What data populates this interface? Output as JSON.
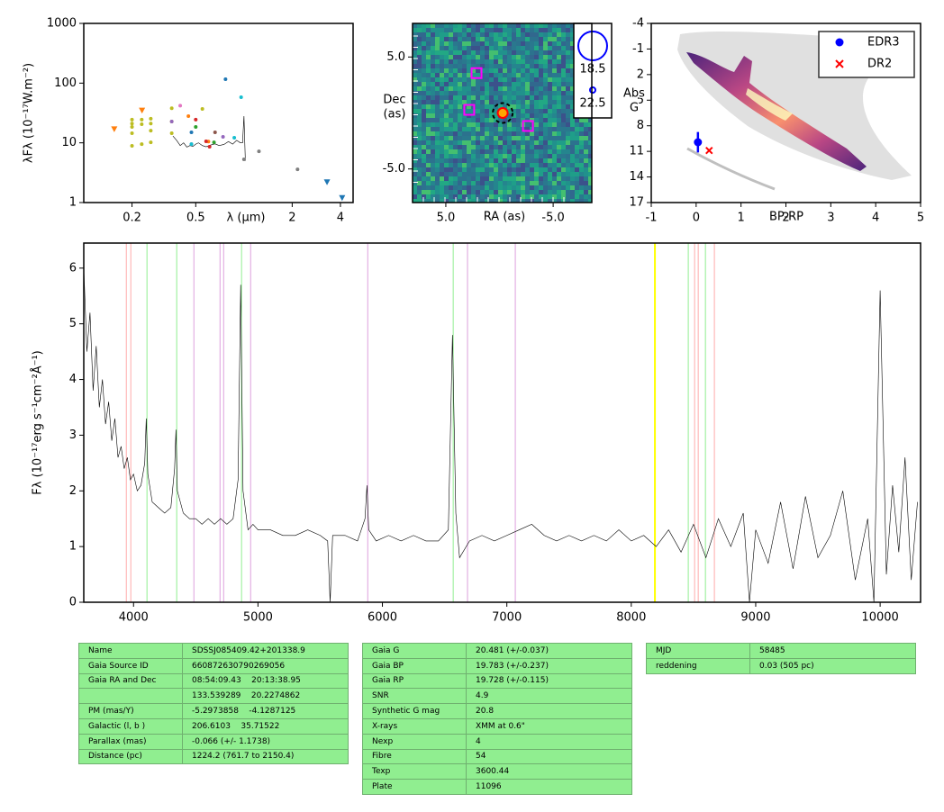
{
  "chart_data": [
    {
      "type": "scatter",
      "log_x": true,
      "log_y": true,
      "xlim": [
        0.1,
        4.8
      ],
      "ylim": [
        1,
        1000
      ],
      "xticks": [
        0.2,
        0.5,
        2,
        4
      ],
      "yticks": [
        1,
        10,
        100,
        1000
      ],
      "xlabel": "λ (μm)",
      "ylabel": "λFλ (10⁻¹⁷W.m⁻²)",
      "series": [
        {
          "color": "#000000",
          "marker": "line",
          "x": [
            0.36,
            0.38,
            0.4,
            0.42,
            0.44,
            0.46,
            0.48,
            0.5,
            0.52,
            0.55,
            0.58,
            0.62,
            0.66,
            0.7,
            0.75,
            0.8,
            0.85,
            0.9,
            0.95,
            0.98,
            1.0,
            1.02
          ],
          "values": [
            13,
            11,
            9,
            10,
            8.5,
            9,
            8.7,
            9.5,
            10,
            9,
            8.6,
            9.2,
            9.6,
            9,
            9.4,
            10.5,
            9.5,
            11,
            10,
            10,
            28,
            5
          ]
        },
        {
          "color": "#bcbd22",
          "marker": "dot",
          "x": [
            0.2,
            0.2,
            0.2,
            0.2,
            0.2,
            0.23,
            0.23,
            0.23,
            0.262,
            0.262,
            0.262,
            0.262,
            0.354,
            0.354,
            0.354,
            0.55
          ],
          "values": [
            24.5,
            21,
            18.5,
            14.5,
            8.9,
            24.5,
            20.5,
            9.5,
            25.3,
            21,
            16,
            10.2,
            38,
            22.7,
            14.5,
            37
          ]
        },
        {
          "color": "#ff7f0e",
          "marker": "triangle",
          "x": [
            0.155,
            0.231
          ],
          "values": [
            17,
            35
          ]
        },
        {
          "color": "#ff7f0e",
          "marker": "dot",
          "x": [
            0.45,
            0.6
          ],
          "values": [
            28,
            10.5
          ]
        },
        {
          "color": "#e377c2",
          "marker": "dot",
          "x": [
            0.4
          ],
          "values": [
            42
          ]
        },
        {
          "color": "#9467bd",
          "marker": "dot",
          "x": [
            0.354,
            0.47,
            0.74
          ],
          "values": [
            22.7,
            9.5,
            12.6
          ]
        },
        {
          "color": "#1f77b4",
          "marker": "dot",
          "x": [
            0.767,
            0.47
          ],
          "values": [
            116,
            15
          ]
        },
        {
          "color": "#17becf",
          "marker": "dot",
          "x": [
            0.96,
            0.87,
            0.47
          ],
          "values": [
            58,
            12.2,
            9.5
          ]
        },
        {
          "color": "#7f7f7f",
          "marker": "dot",
          "x": [
            1.24,
            2.16,
            1.0
          ],
          "values": [
            7.2,
            3.6,
            5.3
          ]
        },
        {
          "color": "#1f77b4",
          "marker": "triangle",
          "x": [
            3.3,
            4.1
          ],
          "values": [
            2.2,
            1.2
          ]
        },
        {
          "color": "#d62728",
          "marker": "dot",
          "x": [
            0.5,
            0.58,
            0.61
          ],
          "values": [
            24.5,
            10.6,
            8.6
          ]
        },
        {
          "color": "#2ca02c",
          "marker": "dot",
          "x": [
            0.5,
            0.65
          ],
          "values": [
            18.5,
            10.2
          ]
        },
        {
          "color": "#8c564b",
          "marker": "dot",
          "x": [
            0.66
          ],
          "values": [
            15
          ]
        }
      ]
    },
    {
      "type": "image",
      "xlim": [
        8.1,
        -8.6
      ],
      "ylim": [
        -8,
        8
      ],
      "xticks": [
        {
          "value": 5,
          "label": "5.0"
        },
        {
          "value": -5,
          "label": "-5.0"
        }
      ],
      "yticks": [
        {
          "value": 5,
          "label": "5.0"
        },
        {
          "value": -5,
          "label": "-5.0"
        }
      ],
      "xlabel": "RA (as)",
      "ylabel": [
        "Dec",
        "(as)"
      ],
      "target": {
        "x": -0.3,
        "y": 0,
        "color": "#ff0000"
      },
      "neighbours": {
        "color": "#ff00ff",
        "x": [
          2.14,
          2.82,
          -2.65
        ],
        "values": [
          3.56,
          0.28,
          -1.16
        ]
      },
      "size_legend": [
        18.5,
        22.5
      ],
      "size_legend_color": "#0000ff"
    },
    {
      "type": "scatter",
      "xlim": [
        -1,
        5
      ],
      "ylim": [
        17,
        -4
      ],
      "xticks": [
        -1,
        0,
        1,
        2,
        3,
        4,
        5
      ],
      "yticks": [
        -4,
        -1,
        2,
        5,
        8,
        11,
        14,
        17
      ],
      "xlabel": "BP-RP",
      "ylabel": [
        "Abs",
        "G"
      ],
      "legend": "upper right",
      "series": [
        {
          "name": "EDR3",
          "color": "#0000ff",
          "marker": "dot",
          "x": [
            0.04
          ],
          "values": [
            9.93
          ],
          "errors": [
            1.2
          ]
        },
        {
          "name": "DR2",
          "color": "#ff0000",
          "marker": "x",
          "x": [
            0.29
          ],
          "values": [
            10.9
          ]
        }
      ]
    },
    {
      "type": "line",
      "xlim": [
        3600,
        10325
      ],
      "ylim": [
        0,
        6.45
      ],
      "xticks": [
        4000,
        5000,
        6000,
        7000,
        8000,
        9000,
        10000
      ],
      "yticks": [
        0,
        1,
        2,
        3,
        4,
        5,
        6
      ],
      "ylabel": "Fλ (10⁻¹⁷erg s⁻¹cm⁻²Å⁻¹)",
      "color": "#000000",
      "x": [
        3600,
        3625,
        3650,
        3675,
        3700,
        3725,
        3750,
        3775,
        3800,
        3825,
        3850,
        3875,
        3900,
        3925,
        3950,
        3975,
        4000,
        4030,
        4060,
        4090,
        4102,
        4115,
        4150,
        4200,
        4250,
        4300,
        4330,
        4341,
        4352,
        4400,
        4450,
        4500,
        4550,
        4600,
        4650,
        4700,
        4750,
        4800,
        4840,
        4861,
        4880,
        4920,
        4960,
        5000,
        5100,
        5200,
        5300,
        5400,
        5500,
        5560,
        5580,
        5600,
        5700,
        5800,
        5860,
        5876,
        5890,
        5950,
        6050,
        6150,
        6250,
        6350,
        6450,
        6530,
        6563,
        6590,
        6620,
        6700,
        6800,
        6900,
        7000,
        7100,
        7200,
        7300,
        7400,
        7500,
        7600,
        7700,
        7800,
        7900,
        8000,
        8100,
        8200,
        8300,
        8400,
        8500,
        8600,
        8700,
        8800,
        8900,
        8950,
        9000,
        9100,
        9200,
        9300,
        9400,
        9500,
        9600,
        9700,
        9800,
        9900,
        9950,
        10000,
        10050,
        10100,
        10150,
        10200,
        10250,
        10300
      ],
      "values": [
        6.0,
        4.5,
        5.2,
        3.8,
        4.6,
        3.5,
        4.0,
        3.2,
        3.6,
        2.9,
        3.3,
        2.6,
        2.8,
        2.4,
        2.6,
        2.2,
        2.3,
        2.0,
        2.1,
        2.5,
        3.3,
        2.3,
        1.8,
        1.7,
        1.6,
        1.7,
        2.4,
        3.1,
        2.0,
        1.6,
        1.5,
        1.5,
        1.4,
        1.5,
        1.4,
        1.5,
        1.4,
        1.5,
        2.2,
        5.7,
        2.0,
        1.3,
        1.4,
        1.3,
        1.3,
        1.2,
        1.2,
        1.3,
        1.2,
        1.1,
        0.0,
        1.2,
        1.2,
        1.1,
        1.5,
        2.1,
        1.3,
        1.1,
        1.2,
        1.1,
        1.2,
        1.1,
        1.1,
        1.3,
        4.8,
        1.6,
        0.8,
        1.1,
        1.2,
        1.1,
        1.2,
        1.3,
        1.4,
        1.2,
        1.1,
        1.2,
        1.1,
        1.2,
        1.1,
        1.3,
        1.1,
        1.2,
        1.0,
        1.3,
        0.9,
        1.4,
        0.8,
        1.5,
        1.0,
        1.6,
        0.0,
        1.3,
        0.7,
        1.8,
        0.6,
        1.9,
        0.8,
        1.2,
        2.0,
        0.4,
        1.5,
        0.0,
        5.6,
        0.5,
        2.1,
        0.9,
        2.6,
        0.4,
        1.8
      ],
      "lines": [
        {
          "x": 3942,
          "color": "#ffaaaa"
        },
        {
          "x": 3978,
          "color": "#ffaaaa"
        },
        {
          "x": 4108,
          "color": "#90ee90"
        },
        {
          "x": 4347,
          "color": "#90ee90"
        },
        {
          "x": 4485,
          "color": "#dda0dd"
        },
        {
          "x": 4695,
          "color": "#dda0dd"
        },
        {
          "x": 4724,
          "color": "#dda0dd"
        },
        {
          "x": 4868,
          "color": "#90ee90"
        },
        {
          "x": 4941,
          "color": "#dda0dd"
        },
        {
          "x": 5882,
          "color": "#dda0dd"
        },
        {
          "x": 6569,
          "color": "#90ee90"
        },
        {
          "x": 6684,
          "color": "#dda0dd"
        },
        {
          "x": 7068,
          "color": "#dda0dd"
        },
        {
          "x": 8190,
          "color": "#ffff00"
        },
        {
          "x": 8458,
          "color": "#90ee90"
        },
        {
          "x": 8509,
          "color": "#ffaaaa"
        },
        {
          "x": 8538,
          "color": "#ffaaaa"
        },
        {
          "x": 8596,
          "color": "#90ee90"
        },
        {
          "x": 8668,
          "color": "#ffaaaa"
        }
      ]
    }
  ],
  "tables": [
    {
      "rows": [
        [
          "Name",
          "SDSSJ085409.42+201338.9"
        ],
        [
          "Gaia Source ID",
          "660872630790269056"
        ],
        [
          "Gaia RA and Dec",
          "08:54:09.43    20:13:38.95"
        ],
        [
          null,
          "133.539289    20.2274862"
        ],
        [
          "PM (mas/Y)",
          "-5.2973858    -4.1287125"
        ],
        [
          "Galactic (l, b )",
          "206.6103    35.71522"
        ],
        [
          "Parallax (mas)",
          "-0.066 (+/- 1.1738)"
        ],
        [
          "Distance (pc)",
          "1224.2 (761.7 to 2150.4)"
        ]
      ]
    },
    {
      "rows": [
        [
          "Gaia G",
          "20.481 (+/-0.037)"
        ],
        [
          "Gaia BP",
          "19.783 (+/-0.237)"
        ],
        [
          "Gaia RP",
          "19.728 (+/-0.115)"
        ],
        [
          "SNR",
          "4.9"
        ],
        [
          "Synthetic G mag",
          "20.8"
        ],
        [
          "X-rays",
          "XMM at 0.6\""
        ],
        [
          "Nexp",
          "4"
        ],
        [
          "Fibre",
          "54"
        ],
        [
          "Texp",
          "3600.44"
        ],
        [
          "Plate",
          "11096"
        ]
      ]
    },
    {
      "rows": [
        [
          "MJD",
          "58485"
        ],
        [
          "reddening",
          "0.03 (505 pc)"
        ]
      ]
    }
  ]
}
